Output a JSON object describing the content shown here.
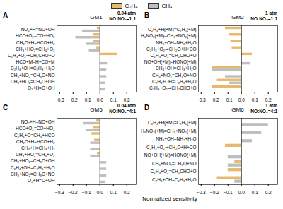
{
  "xlabel": "Normalized sensitivity",
  "chart_data": [
    {
      "type": "bar",
      "orientation": "horizontal",
      "title": "GM1",
      "legend": "top",
      "annotations": [
        "A",
        "0.04 atm\nNO:NO₂=1:1"
      ],
      "categories": [
        "NO₂+H=NO+OH",
        "HCO+O₂=CO+HO₂",
        "CH₂O+H=HCO+H₂",
        "CH₃+HO₂=CH₄+O₂",
        "C₂H₃+O₂⇒CH₂CHO+O",
        "HCO+M=H+CO+M",
        "C₂H₄+OH=C₂H₃+H₂O",
        "CH₃+NO₂=CH₃O+NO",
        "CH₃+HO₂=CH₃O+OH",
        "O₂+H=O+OH"
      ],
      "series": [
        {
          "name": "C₂H₄",
          "color": "#E8B96A",
          "values": [
            -0.02,
            -0.05,
            -0.05,
            -0.03,
            0.13,
            0.0,
            0.0,
            0.0,
            0.0,
            0.0
          ]
        },
        {
          "name": "CH₄",
          "color": "#BEBEBE",
          "values": [
            -0.13,
            -0.18,
            -0.1,
            -0.08,
            0.0,
            0.055,
            0.05,
            0.05,
            0.04,
            0.04
          ]
        }
      ],
      "xlim": [
        -0.32,
        0.27
      ],
      "xticks": [
        -0.3,
        -0.2,
        -0.1,
        {
          "value": 0.0,
          "label": "0.0"
        },
        0.1,
        0.2
      ]
    },
    {
      "type": "bar",
      "orientation": "horizontal",
      "title": "GM2",
      "annotations": [
        "B",
        "1 atm\nNO:NO₂=1:1"
      ],
      "categories": [
        "C₂H₄+H(+M)=C₂H₅(+M)",
        "CH₃NO₂(+M)=CH₃+NO₂(+M)",
        "NH₃+OH=NH₂+H₂O",
        "C₂H₃+O₂⇒CH₂O+H+CO",
        "C₂H₃+O₂=CH₂CHO+O",
        "NO+OH(+M)=HONO(+M)",
        "CH₄+OH=CH₃+H₂O",
        "CH₃+NO₂=CH₃O+NO",
        "C₂H₄+OH=C₂H₃+H₂O",
        "C₂H₃+O₂⇒CH₂CHO+O"
      ],
      "series": [
        {
          "name": "C₂H₄",
          "color": "#E8B96A",
          "values": [
            -0.12,
            -0.09,
            -0.08,
            -0.07,
            0.08,
            0.0,
            -0.22,
            0.0,
            -0.18,
            -0.22
          ]
        },
        {
          "name": "CH₄",
          "color": "#BEBEBE",
          "values": [
            0.0,
            0.0,
            0.0,
            0.0,
            0.0,
            0.07,
            -0.22,
            -0.12,
            -0.09,
            0.0
          ]
        }
      ],
      "xlim": [
        -0.32,
        0.27
      ],
      "xticks": [
        -0.3,
        -0.2,
        -0.1,
        {
          "value": 0.0,
          "label": "0.0"
        },
        0.1,
        0.2
      ]
    },
    {
      "type": "bar",
      "orientation": "horizontal",
      "title": "GM5",
      "annotations": [
        "C",
        "0.04 atm\nNO:NO₂=4:1"
      ],
      "categories": [
        "NO₂+H=NO+OH",
        "HCO+O₂=CO+HO₂",
        "C₂H₄+O=CH₃+HCO",
        "CH₂O+H=HCO+H₂",
        "CH₄+H=CH₃+H₂",
        "CH₃+HO₂=CH₄+O₂",
        "CH₃+HO₂=CH₃O+OH",
        "C₂H₄+OH=C₂H₃+H₂O",
        "CH₃+NO₂=CH₃O+NO",
        "O₂+H=O+OH"
      ],
      "series": [
        {
          "name": "C₂H₄",
          "color": "#E8B96A",
          "values": [
            -0.03,
            -0.05,
            -0.06,
            -0.04,
            0.0,
            -0.02,
            0.0,
            0.0,
            0.0,
            0.0
          ]
        },
        {
          "name": "CH₄",
          "color": "#BEBEBE",
          "values": [
            -0.12,
            -0.1,
            0.0,
            -0.07,
            -0.07,
            -0.07,
            0.05,
            0.05,
            0.05,
            0.04
          ]
        }
      ],
      "xlim": [
        -0.32,
        0.27
      ],
      "xticks": [
        -0.3,
        -0.2,
        -0.1,
        {
          "value": 0.0,
          "label": "0.0"
        },
        0.1,
        0.2
      ]
    },
    {
      "type": "bar",
      "orientation": "horizontal",
      "title": "GM6",
      "annotations": [
        "D",
        "1 atm\nNO:NO₂=4:1"
      ],
      "categories": [
        "C₂H₄+H(+M)=C₂H₅(+M)",
        "CH₃NO₂(+M)=CH₃+NO₂(+M)",
        "NH₃+OH=NH₂+H₂O",
        "C₂H₃+O₂⇒CH₂O+H+CO",
        "NO+OH(+M)=HONO(+M)",
        "CH₃+NO₂=CH₃O+NO",
        "C₂H₃+O₂=CH₂CHO+O",
        "C₂H₄+OH=C₂H₃+H₂O"
      ],
      "series": [
        {
          "name": "C₂H₄",
          "color": "#E8B96A",
          "values": [
            0.0,
            0.0,
            0.0,
            -0.12,
            0.0,
            -0.05,
            -0.1,
            -0.18
          ]
        },
        {
          "name": "CH₄",
          "color": "#BEBEBE",
          "values": [
            0.2,
            0.15,
            0.08,
            0.0,
            -0.1,
            -0.1,
            0.0,
            -0.05
          ]
        }
      ],
      "xlim": [
        -0.32,
        0.27
      ],
      "xticks": [
        -0.3,
        -0.2,
        -0.1,
        {
          "value": 0.0,
          "label": "0.0"
        },
        0.1,
        0.2
      ]
    }
  ]
}
